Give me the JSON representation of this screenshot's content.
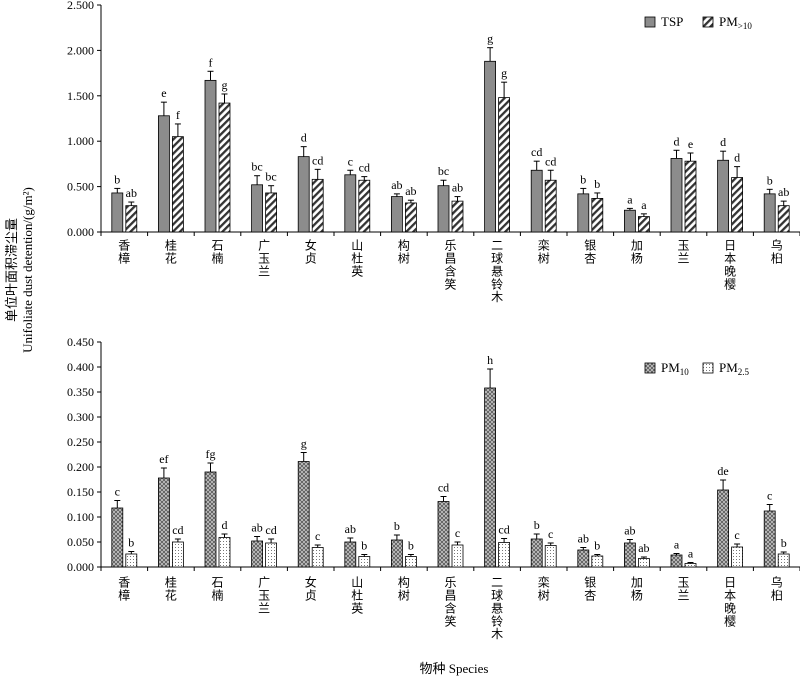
{
  "figure": {
    "ylabel_cn": "单位叶面积滞尘量",
    "ylabel_en": "Unifoliate dust detention/(g/m²)",
    "xlabel": "物种 Species"
  },
  "chart_data": [
    {
      "type": "bar",
      "categories": [
        "香樟",
        "桂花",
        "石楠",
        "广玉兰",
        "女贞",
        "山杜英",
        "构树",
        "乐昌含笑",
        "二球悬铃木",
        "栾树",
        "银杏",
        "加杨",
        "玉兰",
        "日本晚樱",
        "乌桕"
      ],
      "ylim": [
        0,
        2.5
      ],
      "yticks": [
        "0.000",
        "0.500",
        "1.000",
        "1.500",
        "2.000",
        "2.500"
      ],
      "legend_position": "top-right",
      "series": [
        {
          "name": "TSP",
          "legend_main": "TSP",
          "legend_sub": "",
          "pattern": "solid-gray",
          "values": [
            0.43,
            1.28,
            1.67,
            0.52,
            0.83,
            0.63,
            0.39,
            0.51,
            1.88,
            0.68,
            0.42,
            0.24,
            0.81,
            0.79,
            0.42
          ],
          "errors": [
            0.05,
            0.15,
            0.1,
            0.1,
            0.11,
            0.05,
            0.03,
            0.06,
            0.15,
            0.1,
            0.06,
            0.02,
            0.09,
            0.1,
            0.05
          ],
          "letters": [
            "b",
            "e",
            "f",
            "bc",
            "d",
            "c",
            "ab",
            "bc",
            "g",
            "cd",
            "b",
            "a",
            "d",
            "d",
            "b"
          ]
        },
        {
          "name": "PM>10",
          "legend_main": "PM",
          "legend_sub": ">10",
          "pattern": "diagonal-hatch",
          "values": [
            0.29,
            1.05,
            1.42,
            0.43,
            0.58,
            0.57,
            0.32,
            0.34,
            1.48,
            0.57,
            0.37,
            0.17,
            0.78,
            0.6,
            0.29
          ],
          "errors": [
            0.04,
            0.14,
            0.1,
            0.08,
            0.11,
            0.04,
            0.03,
            0.05,
            0.17,
            0.11,
            0.06,
            0.03,
            0.09,
            0.12,
            0.05
          ],
          "letters": [
            "ab",
            "f",
            "g",
            "bc",
            "cd",
            "cd",
            "ab",
            "ab",
            "g",
            "cd",
            "b",
            "a",
            "e",
            "d",
            "ab"
          ]
        }
      ]
    },
    {
      "type": "bar",
      "categories": [
        "香樟",
        "桂花",
        "石楠",
        "广玉兰",
        "女贞",
        "山杜英",
        "构树",
        "乐昌含笑",
        "二球悬铃木",
        "栾树",
        "银杏",
        "加杨",
        "玉兰",
        "日本晚樱",
        "乌桕"
      ],
      "ylim": [
        0,
        0.45
      ],
      "yticks": [
        "0.000",
        "0.050",
        "0.100",
        "0.150",
        "0.200",
        "0.250",
        "0.300",
        "0.350",
        "0.400",
        "0.450"
      ],
      "legend_position": "top-right",
      "series": [
        {
          "name": "PM10",
          "legend_main": "PM",
          "legend_sub": "10",
          "pattern": "crosshatch",
          "values": [
            0.118,
            0.178,
            0.19,
            0.052,
            0.211,
            0.05,
            0.054,
            0.131,
            0.358,
            0.056,
            0.034,
            0.048,
            0.024,
            0.154,
            0.112
          ],
          "errors": [
            0.015,
            0.02,
            0.018,
            0.009,
            0.018,
            0.008,
            0.01,
            0.01,
            0.038,
            0.01,
            0.005,
            0.007,
            0.003,
            0.02,
            0.013
          ],
          "letters": [
            "c",
            "ef",
            "fg",
            "ab",
            "g",
            "ab",
            "b",
            "cd",
            "h",
            "b",
            "ab",
            "ab",
            "a",
            "de",
            "c"
          ]
        },
        {
          "name": "PM2.5",
          "legend_main": "PM",
          "legend_sub": "2.5",
          "pattern": "dots",
          "values": [
            0.026,
            0.05,
            0.059,
            0.048,
            0.039,
            0.021,
            0.021,
            0.044,
            0.049,
            0.043,
            0.022,
            0.017,
            0.007,
            0.04,
            0.026
          ],
          "errors": [
            0.005,
            0.006,
            0.007,
            0.008,
            0.005,
            0.004,
            0.004,
            0.006,
            0.008,
            0.005,
            0.003,
            0.003,
            0.002,
            0.006,
            0.004
          ],
          "letters": [
            "b",
            "cd",
            "d",
            "cd",
            "c",
            "b",
            "b",
            "c",
            "cd",
            "c",
            "b",
            "ab",
            "a",
            "c",
            "b"
          ]
        }
      ]
    }
  ]
}
